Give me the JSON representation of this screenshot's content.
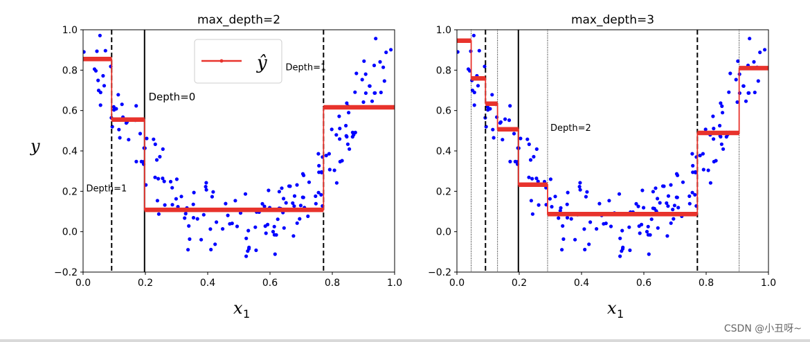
{
  "watermark": "CSDN @小丑呀~",
  "colors": {
    "points": "#0000ff",
    "prediction": "#e8332c",
    "split": "#000000",
    "axis": "#000000"
  },
  "chart_data": [
    {
      "type": "scatter",
      "title": "max_depth=2",
      "xlabel": "x",
      "xlabel_sub": "1",
      "ylabel": "y",
      "xlim": [
        0.0,
        1.0
      ],
      "ylim": [
        -0.2,
        1.0
      ],
      "xticks": [
        "0.0",
        "0.2",
        "0.4",
        "0.6",
        "0.8",
        "1.0"
      ],
      "xtick_values": [
        0.0,
        0.2,
        0.4,
        0.6,
        0.8,
        1.0
      ],
      "yticks": [
        "−0.2",
        "0.0",
        "0.2",
        "0.4",
        "0.6",
        "0.8",
        "1.0"
      ],
      "ytick_values": [
        -0.2,
        0.0,
        0.2,
        0.4,
        0.6,
        0.8,
        1.0
      ],
      "legend": {
        "label": "ŷ",
        "placement": "top-center"
      },
      "prediction_steps": [
        {
          "x0": 0.0,
          "x1": 0.0917,
          "y": 0.855
        },
        {
          "x0": 0.0917,
          "x1": 0.1973,
          "y": 0.555
        },
        {
          "x0": 0.1973,
          "x1": 0.7718,
          "y": 0.108
        },
        {
          "x0": 0.7718,
          "x1": 1.0,
          "y": 0.616
        }
      ],
      "split_lines": [
        {
          "x": 0.1973,
          "style": "solid",
          "width": 2
        },
        {
          "x": 0.0917,
          "style": "dashed",
          "width": 2
        },
        {
          "x": 0.7718,
          "style": "dashed",
          "width": 2
        }
      ],
      "annotations": [
        {
          "text": "Depth=0",
          "x": 0.21,
          "y": 0.65,
          "size": 15
        },
        {
          "text": "Depth=1",
          "x": 0.01,
          "y": 0.2,
          "size": 13
        },
        {
          "text": "Depth=1",
          "x": 0.65,
          "y": 0.8,
          "size": 13
        }
      ]
    },
    {
      "type": "scatter",
      "title": "max_depth=3",
      "xlabel": "x",
      "xlabel_sub": "1",
      "ylabel": "",
      "xlim": [
        0.0,
        1.0
      ],
      "ylim": [
        -0.2,
        1.0
      ],
      "xticks": [
        "0.0",
        "0.2",
        "0.4",
        "0.6",
        "0.8",
        "1.0"
      ],
      "xtick_values": [
        0.0,
        0.2,
        0.4,
        0.6,
        0.8,
        1.0
      ],
      "yticks": [
        "−0.2",
        "0.0",
        "0.2",
        "0.4",
        "0.6",
        "0.8",
        "1.0"
      ],
      "ytick_values": [
        -0.2,
        0.0,
        0.2,
        0.4,
        0.6,
        0.8,
        1.0
      ],
      "prediction_steps": [
        {
          "x0": 0.0,
          "x1": 0.0458,
          "y": 0.946
        },
        {
          "x0": 0.0458,
          "x1": 0.0917,
          "y": 0.759
        },
        {
          "x0": 0.0917,
          "x1": 0.1303,
          "y": 0.634
        },
        {
          "x0": 0.1303,
          "x1": 0.1973,
          "y": 0.507
        },
        {
          "x0": 0.1973,
          "x1": 0.291,
          "y": 0.233
        },
        {
          "x0": 0.291,
          "x1": 0.7718,
          "y": 0.087
        },
        {
          "x0": 0.7718,
          "x1": 0.9059,
          "y": 0.489
        },
        {
          "x0": 0.9059,
          "x1": 1.0,
          "y": 0.81
        }
      ],
      "split_lines": [
        {
          "x": 0.1973,
          "style": "solid",
          "width": 2
        },
        {
          "x": 0.0917,
          "style": "dashed",
          "width": 2
        },
        {
          "x": 0.7718,
          "style": "dashed",
          "width": 2
        },
        {
          "x": 0.0458,
          "style": "dotted",
          "width": 1
        },
        {
          "x": 0.1303,
          "style": "dotted",
          "width": 1
        },
        {
          "x": 0.291,
          "style": "dotted",
          "width": 1
        },
        {
          "x": 0.9059,
          "style": "dotted",
          "width": 1
        }
      ],
      "annotations": [
        {
          "text": "Depth=2",
          "x": 0.3,
          "y": 0.5,
          "size": 13
        }
      ]
    }
  ]
}
